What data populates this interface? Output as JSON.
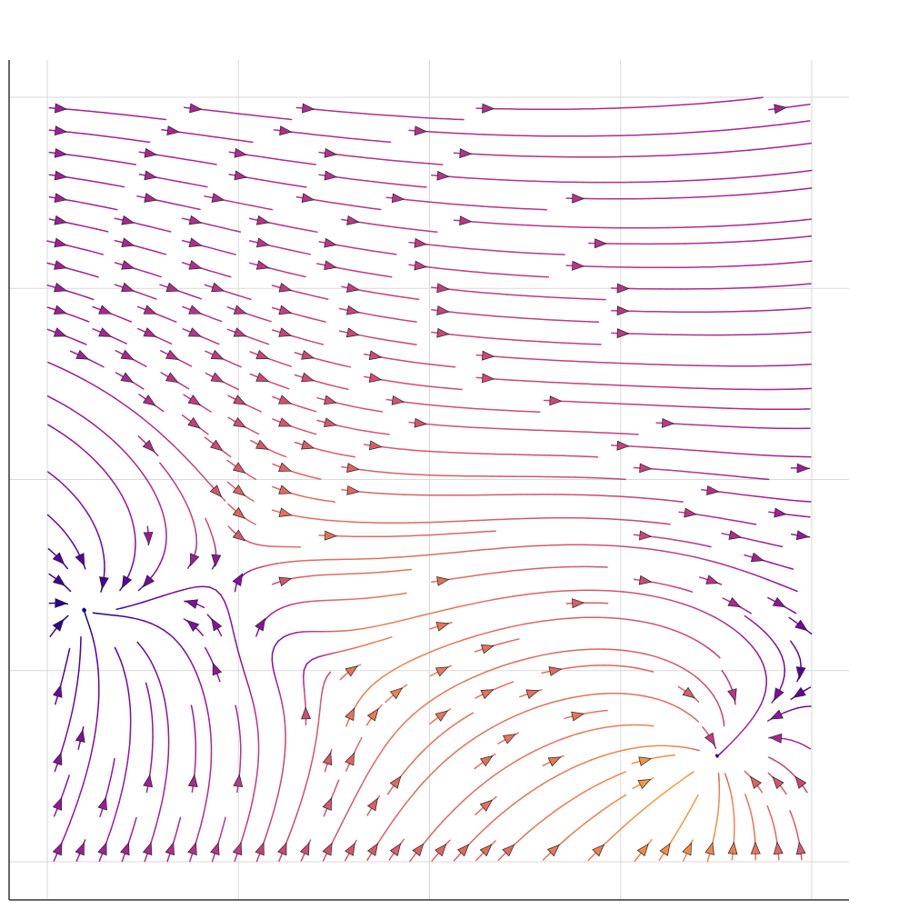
{
  "chart_data": {
    "type": "streamplot",
    "title": "",
    "xlabel": "",
    "ylabel": "",
    "xlim": [
      -2,
      2
    ],
    "ylim": [
      -2,
      2
    ],
    "grid": true,
    "xticks": [
      -2,
      -1,
      0,
      1,
      2
    ],
    "yticks": [
      -2,
      -1,
      0,
      1,
      2
    ],
    "colormap": [
      "#0d0887",
      "#5c01a6",
      "#9c179e",
      "#cc4778",
      "#ed7953",
      "#fdb42f",
      "#f0f921"
    ],
    "color_encoding": "speed",
    "critical_points": [
      {
        "kind": "stable node",
        "x": 1.45,
        "y": -1.5
      },
      {
        "kind": "saddle",
        "x": -1.0,
        "y": -0.4
      },
      {
        "kind": "saddle",
        "x": -0.5,
        "y": -1.0
      }
    ]
  }
}
